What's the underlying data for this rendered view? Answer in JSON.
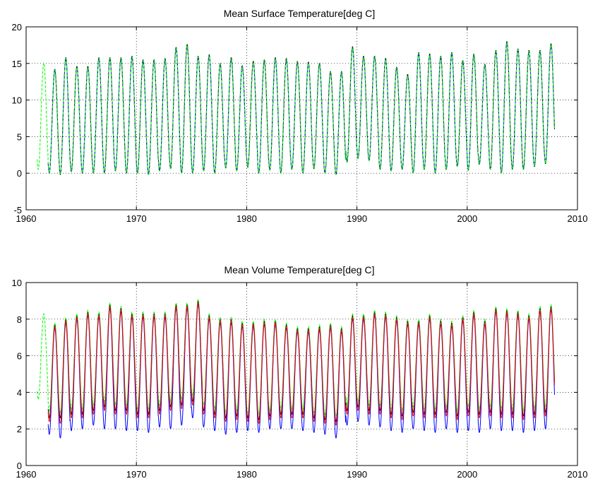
{
  "chart_data": [
    {
      "type": "line",
      "title": "Mean Surface Temperature[deg C]",
      "xlabel": "",
      "ylabel": "",
      "xlim": [
        1960,
        2010
      ],
      "ylim": [
        -5,
        20
      ],
      "xticks": [
        "1960",
        "1970",
        "1980",
        "1990",
        "2000",
        "2010"
      ],
      "yticks": [
        "-5",
        "0",
        "5",
        "10",
        "15",
        "20"
      ],
      "grid": true,
      "legend": "none",
      "colors": {
        "black": "#000000",
        "blue": "#0000ff",
        "green": "#00ff00",
        "red": "#ff0000"
      },
      "x_start": 1961.0,
      "x_end": 2007.92,
      "green_only_until": 1962.0,
      "series": [
        {
          "color": "#000000",
          "line_style": "solid",
          "annual_max": [
            15.2,
            14.2,
            15.8,
            14.6,
            14.6,
            15.8,
            15.8,
            15.8,
            16.0,
            15.5,
            15.5,
            15.7,
            17.2,
            17.6,
            16.0,
            16.2,
            15.0,
            15.8,
            14.7,
            15.3,
            15.5,
            15.8,
            15.7,
            15.3,
            15.2,
            15.0,
            13.9,
            13.9,
            17.3,
            16.0,
            16.0,
            15.7,
            14.5,
            13.5,
            16.5,
            16.3,
            16.0,
            16.5,
            15.4,
            16.3,
            14.9,
            16.8,
            18.0,
            17.0,
            16.8,
            16.8,
            17.7,
            16.0
          ],
          "annual_min": [
            0.5,
            0.0,
            -0.2,
            0.2,
            0.0,
            0.0,
            0.0,
            0.3,
            0.0,
            0.0,
            -0.2,
            0.3,
            0.6,
            0.0,
            0.0,
            0.3,
            0.0,
            0.7,
            0.3,
            0.8,
            0.0,
            0.4,
            0.0,
            0.5,
            0.0,
            0.6,
            0.0,
            -0.2,
            1.5,
            2.0,
            1.7,
            0.5,
            0.3,
            0.5,
            0.0,
            0.5,
            0.0,
            0.5,
            0.9,
            0.4,
            1.2,
            0.5,
            0.0,
            0.5,
            0.5,
            0.9,
            1.3,
            1.0
          ]
        },
        {
          "color": "#0000ff",
          "line_style": "dashed",
          "annual_max": [
            15.0,
            14.0,
            15.6,
            14.4,
            14.4,
            15.6,
            15.6,
            15.6,
            15.8,
            15.3,
            15.3,
            15.5,
            17.0,
            17.4,
            15.8,
            16.0,
            14.8,
            15.6,
            14.5,
            15.1,
            15.3,
            15.6,
            15.5,
            15.1,
            15.0,
            14.8,
            13.7,
            13.7,
            17.1,
            15.8,
            15.8,
            15.5,
            14.3,
            13.3,
            16.3,
            16.1,
            15.8,
            16.3,
            15.2,
            16.1,
            14.7,
            16.6,
            17.8,
            16.8,
            16.6,
            16.6,
            17.5,
            15.8
          ],
          "annual_min": [
            0.6,
            0.1,
            -0.1,
            0.3,
            0.1,
            0.1,
            0.1,
            0.4,
            0.1,
            0.1,
            -0.1,
            0.4,
            0.7,
            0.1,
            0.1,
            0.4,
            0.1,
            0.8,
            0.4,
            0.9,
            0.1,
            0.5,
            0.1,
            0.6,
            0.1,
            0.7,
            0.1,
            -0.1,
            1.6,
            2.1,
            1.8,
            0.6,
            0.4,
            0.6,
            0.1,
            0.6,
            0.1,
            0.6,
            1.0,
            0.5,
            1.3,
            0.6,
            0.1,
            0.6,
            0.6,
            1.0,
            1.4,
            1.1
          ]
        },
        {
          "color": "#00ff00",
          "line_style": "dashed",
          "annual_max": [
            15.1,
            14.1,
            15.7,
            14.5,
            14.5,
            15.7,
            15.7,
            15.7,
            15.9,
            15.4,
            15.4,
            15.6,
            17.1,
            17.5,
            15.9,
            16.1,
            14.9,
            15.7,
            14.6,
            15.2,
            15.4,
            15.7,
            15.6,
            15.2,
            15.1,
            14.9,
            13.8,
            13.8,
            17.2,
            15.9,
            15.9,
            15.6,
            14.4,
            13.4,
            16.4,
            16.2,
            15.9,
            16.4,
            15.3,
            16.2,
            14.8,
            16.7,
            17.9,
            16.9,
            16.7,
            16.7,
            17.6,
            15.9
          ],
          "annual_min": [
            0.5,
            0.0,
            -0.2,
            0.2,
            0.0,
            0.0,
            0.0,
            0.3,
            0.0,
            0.0,
            -0.2,
            0.3,
            0.6,
            0.0,
            0.0,
            0.3,
            0.0,
            0.7,
            0.3,
            0.8,
            0.0,
            0.4,
            0.0,
            0.5,
            0.0,
            0.6,
            0.0,
            -0.2,
            1.5,
            2.0,
            1.7,
            0.5,
            0.3,
            0.5,
            0.0,
            0.5,
            0.0,
            0.5,
            0.9,
            0.4,
            1.2,
            0.5,
            0.0,
            0.5,
            0.5,
            0.9,
            1.3,
            1.0
          ]
        }
      ]
    },
    {
      "type": "line",
      "title": "Mean Volume Temperature[deg C]",
      "xlabel": "",
      "ylabel": "",
      "xlim": [
        1960,
        2010
      ],
      "ylim": [
        0,
        10
      ],
      "xticks": [
        "1960",
        "1970",
        "1980",
        "1990",
        "2000",
        "2010"
      ],
      "yticks": [
        "0",
        "2",
        "4",
        "6",
        "8",
        "10"
      ],
      "grid": true,
      "legend": "none",
      "colors": {
        "black": "#000000",
        "blue": "#0000ff",
        "green": "#00ff00",
        "red": "#ff0000"
      },
      "x_start": 1961.0,
      "x_end": 2007.92,
      "green_only_until": 1962.0,
      "series": [
        {
          "color": "#000000",
          "line_style": "solid",
          "annual_max": [
            8.2,
            7.7,
            8.0,
            8.2,
            8.4,
            8.3,
            8.8,
            8.6,
            8.3,
            8.3,
            8.3,
            8.3,
            8.8,
            8.8,
            9.0,
            8.2,
            8.0,
            8.0,
            7.8,
            7.8,
            7.9,
            7.9,
            7.7,
            7.5,
            7.5,
            7.6,
            7.7,
            7.5,
            8.2,
            8.2,
            8.4,
            8.3,
            8.1,
            7.9,
            7.9,
            8.2,
            7.9,
            7.8,
            8.1,
            8.4,
            7.9,
            8.6,
            8.5,
            8.4,
            8.2,
            8.6,
            8.7,
            8.7
          ],
          "annual_min": [
            3.2,
            2.6,
            2.6,
            2.8,
            2.8,
            3.0,
            3.2,
            3.0,
            3.0,
            2.8,
            2.8,
            3.0,
            3.2,
            3.3,
            3.5,
            3.0,
            2.8,
            2.6,
            2.7,
            2.6,
            2.5,
            2.7,
            2.8,
            2.8,
            2.8,
            2.6,
            2.5,
            2.4,
            3.0,
            3.2,
            3.0,
            3.0,
            2.8,
            2.7,
            2.9,
            2.8,
            2.8,
            2.9,
            2.7,
            2.9,
            2.8,
            2.9,
            2.8,
            2.8,
            2.7,
            2.8,
            2.9,
            5.6
          ]
        },
        {
          "color": "#0000ff",
          "line_style": "solid",
          "annual_max": [
            8.0,
            7.5,
            7.8,
            8.0,
            8.2,
            8.1,
            8.6,
            8.4,
            8.1,
            8.1,
            8.1,
            8.1,
            8.6,
            8.6,
            8.8,
            8.0,
            7.8,
            7.8,
            7.6,
            7.6,
            7.7,
            7.7,
            7.5,
            7.3,
            7.3,
            7.4,
            7.5,
            7.3,
            8.0,
            8.0,
            8.2,
            8.1,
            7.9,
            7.7,
            7.7,
            8.0,
            7.7,
            7.6,
            7.9,
            8.2,
            7.7,
            8.4,
            8.3,
            8.2,
            8.0,
            8.4,
            8.5,
            8.5
          ],
          "annual_min": [
            2.4,
            1.7,
            1.5,
            1.9,
            2.0,
            2.2,
            2.0,
            2.0,
            1.9,
            1.9,
            1.8,
            2.1,
            2.0,
            2.2,
            2.6,
            2.1,
            1.9,
            1.7,
            1.8,
            1.9,
            1.8,
            2.0,
            2.0,
            2.0,
            1.9,
            1.8,
            1.7,
            1.5,
            2.2,
            2.4,
            2.2,
            2.1,
            1.9,
            1.8,
            2.0,
            1.9,
            1.8,
            2.0,
            1.8,
            1.9,
            1.8,
            2.0,
            1.9,
            1.9,
            1.8,
            1.9,
            2.0,
            5.2
          ]
        },
        {
          "color": "#00ff00",
          "line_style": "dashed",
          "annual_max": [
            8.3,
            7.8,
            8.1,
            8.3,
            8.5,
            8.4,
            8.9,
            8.7,
            8.4,
            8.4,
            8.4,
            8.4,
            8.9,
            8.9,
            9.1,
            8.3,
            8.1,
            8.1,
            7.9,
            7.9,
            8.0,
            8.0,
            7.8,
            7.6,
            7.6,
            7.7,
            7.8,
            7.6,
            8.3,
            8.3,
            8.5,
            8.4,
            8.2,
            8.0,
            8.0,
            8.3,
            8.0,
            7.9,
            8.2,
            8.5,
            8.0,
            8.7,
            8.6,
            8.5,
            8.3,
            8.7,
            8.8,
            8.8
          ],
          "annual_min": [
            3.6,
            3.0,
            2.9,
            3.1,
            3.1,
            3.3,
            3.5,
            3.3,
            3.3,
            3.1,
            3.1,
            3.3,
            3.5,
            3.6,
            3.8,
            3.3,
            3.1,
            2.9,
            3.0,
            2.9,
            2.8,
            3.0,
            3.1,
            3.1,
            3.1,
            2.9,
            2.8,
            2.7,
            3.3,
            3.5,
            3.3,
            3.3,
            3.1,
            3.0,
            3.2,
            3.1,
            3.1,
            3.2,
            3.0,
            3.2,
            3.1,
            3.2,
            3.1,
            3.1,
            3.0,
            3.1,
            3.2,
            5.8
          ]
        },
        {
          "color": "#ff0000",
          "line_style": "solid",
          "annual_max": [
            8.1,
            7.6,
            7.9,
            8.1,
            8.3,
            8.2,
            8.7,
            8.5,
            8.2,
            8.2,
            8.2,
            8.2,
            8.7,
            8.7,
            8.9,
            8.1,
            7.9,
            7.9,
            7.7,
            7.7,
            7.8,
            7.8,
            7.6,
            7.4,
            7.4,
            7.5,
            7.6,
            7.4,
            8.1,
            8.1,
            8.3,
            8.2,
            8.0,
            7.8,
            7.8,
            8.1,
            7.8,
            7.7,
            8.0,
            8.3,
            7.8,
            8.5,
            8.4,
            8.3,
            8.1,
            8.5,
            8.6,
            8.6
          ],
          "annual_min": [
            3.0,
            2.4,
            2.3,
            2.6,
            2.6,
            2.8,
            3.0,
            2.8,
            2.8,
            2.6,
            2.6,
            2.8,
            3.0,
            3.1,
            3.3,
            2.8,
            2.6,
            2.4,
            2.5,
            2.4,
            2.3,
            2.5,
            2.6,
            2.6,
            2.6,
            2.4,
            2.3,
            2.2,
            2.8,
            3.0,
            2.8,
            2.8,
            2.6,
            2.5,
            2.7,
            2.6,
            2.6,
            2.7,
            2.5,
            2.7,
            2.6,
            2.7,
            2.6,
            2.6,
            2.5,
            2.6,
            2.7,
            5.4
          ]
        }
      ]
    }
  ]
}
